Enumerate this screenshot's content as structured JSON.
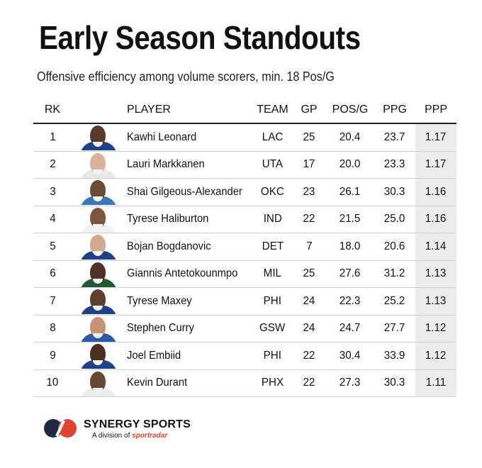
{
  "header": {
    "title": "Early Season Standouts",
    "subtitle": "Offensive efficiency among volume scorers, min. 18 Pos/G"
  },
  "table": {
    "columns": [
      "RK",
      "",
      "PLAYER",
      "TEAM",
      "GP",
      "POS/G",
      "PPG",
      "PPP"
    ],
    "rows": [
      {
        "rk": "1",
        "player": "Kawhi Leonard",
        "team": "LAC",
        "gp": "25",
        "pos_g": "20.4",
        "ppg": "23.7",
        "ppp": "1.17",
        "jersey": "#1d428a",
        "skin": "#5a3a2a"
      },
      {
        "rk": "2",
        "player": "Lauri Markkanen",
        "team": "UTA",
        "gp": "17",
        "pos_g": "20.0",
        "ppg": "23.3",
        "ppp": "1.17",
        "jersey": "#e8e8e8",
        "skin": "#d9b39a"
      },
      {
        "rk": "3",
        "player": "Shai Gilgeous-Alexander",
        "team": "OKC",
        "gp": "23",
        "pos_g": "26.1",
        "ppg": "30.3",
        "ppp": "1.16",
        "jersey": "#3a79c0",
        "skin": "#6b4a38"
      },
      {
        "rk": "4",
        "player": "Tyrese Haliburton",
        "team": "IND",
        "gp": "22",
        "pos_g": "21.5",
        "ppg": "25.0",
        "ppp": "1.16",
        "jersey": "#f2f2f2",
        "skin": "#7a553f"
      },
      {
        "rk": "5",
        "player": " Bojan Bogdanovic",
        "team": "DET",
        "gp": "7",
        "pos_g": "18.0",
        "ppg": "20.6",
        "ppp": "1.14",
        "jersey": "#1d428a",
        "skin": "#d2a88e"
      },
      {
        "rk": "6",
        "player": "Giannis Antetokounmpo",
        "team": "MIL",
        "gp": "25",
        "pos_g": "27.6",
        "ppg": "31.2",
        "ppp": "1.13",
        "jersey": "#1f5a34",
        "skin": "#4f3326"
      },
      {
        "rk": "7",
        "player": "Tyrese Maxey",
        "team": "PHI",
        "gp": "24",
        "pos_g": "22.3",
        "ppg": "25.2",
        "ppp": "1.13",
        "jersey": "#1d428a",
        "skin": "#5e3f2e"
      },
      {
        "rk": "8",
        "player": "Stephen Curry",
        "team": "GSW",
        "gp": "24",
        "pos_g": "24.7",
        "ppg": "27.7",
        "ppp": "1.12",
        "jersey": "#2b5aa8",
        "skin": "#c79373"
      },
      {
        "rk": "9",
        "player": "Joel Embiid",
        "team": "PHI",
        "gp": "22",
        "pos_g": "30.4",
        "ppg": "33.9",
        "ppp": "1.12",
        "jersey": "#1d428a",
        "skin": "#4a2f22"
      },
      {
        "rk": "10",
        "player": "Kevin Durant",
        "team": "PHX",
        "gp": "22",
        "pos_g": "27.3",
        "ppg": "30.3",
        "ppp": "1.11",
        "jersey": "#ececec",
        "skin": "#6a4635"
      }
    ]
  },
  "footer": {
    "brand": "SYNERGY SPORTS",
    "division_prefix": "A division of ",
    "division_brand": "sportradar",
    "colors": {
      "red": "#e0442c",
      "navy": "#1c2a44"
    }
  },
  "colors": {
    "ppp_shade": "#ececec",
    "rule": "#222222",
    "row_divider": "#cfcfcf"
  }
}
